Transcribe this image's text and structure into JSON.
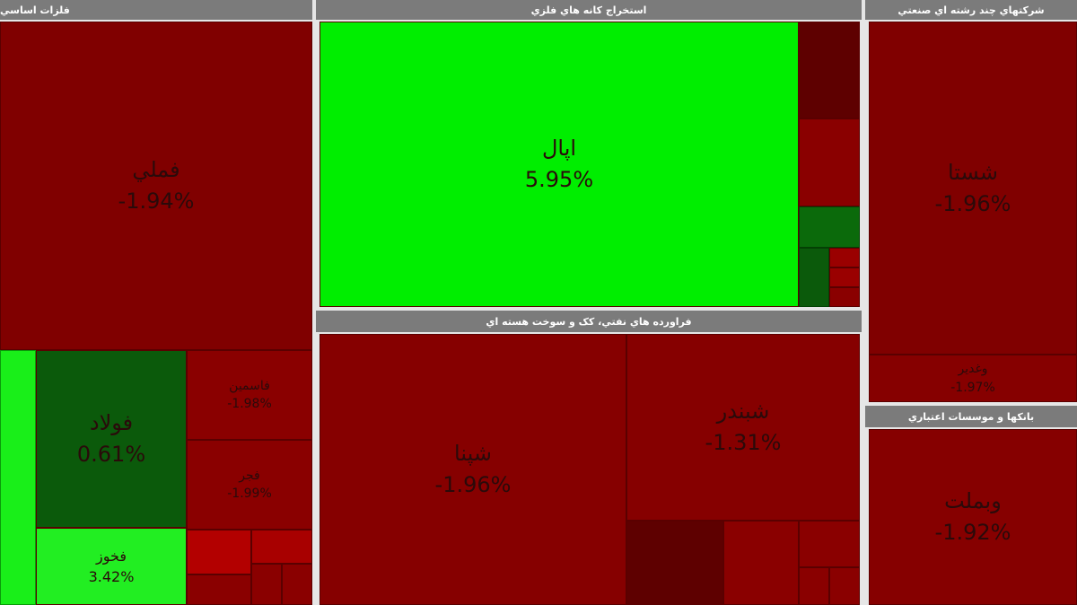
{
  "sectors": [
    {
      "title": "فلزات اساسي",
      "tiles": [
        {
          "name": "فملي",
          "change": "-1.94%"
        },
        {
          "name": "فولاد",
          "change": "0.61%"
        },
        {
          "name": "فخوز",
          "change": "3.42%"
        },
        {
          "name": "فاسمين",
          "change": "-1.98%"
        },
        {
          "name": "فجر",
          "change": "-1.99%"
        }
      ]
    },
    {
      "title": "استخراج کانه هاي فلزي",
      "tiles": [
        {
          "name": "اپال",
          "change": "5.95%"
        }
      ]
    },
    {
      "title": "فراورده هاي نفتي، کک و سوخت هسته اي",
      "tiles": [
        {
          "name": "شپنا",
          "change": "-1.96%"
        },
        {
          "name": "شبندر",
          "change": "-1.31%"
        }
      ]
    },
    {
      "title": "شرکتهاي چند رشته اي صنعتي",
      "tiles": [
        {
          "name": "شستا",
          "change": "-1.96%"
        },
        {
          "name": "وغدير",
          "change": "-1.97%"
        }
      ]
    },
    {
      "title": "بانکها و موسسات اعتباري",
      "tiles": [
        {
          "name": "وبملت",
          "change": "-1.92%"
        }
      ]
    }
  ]
}
